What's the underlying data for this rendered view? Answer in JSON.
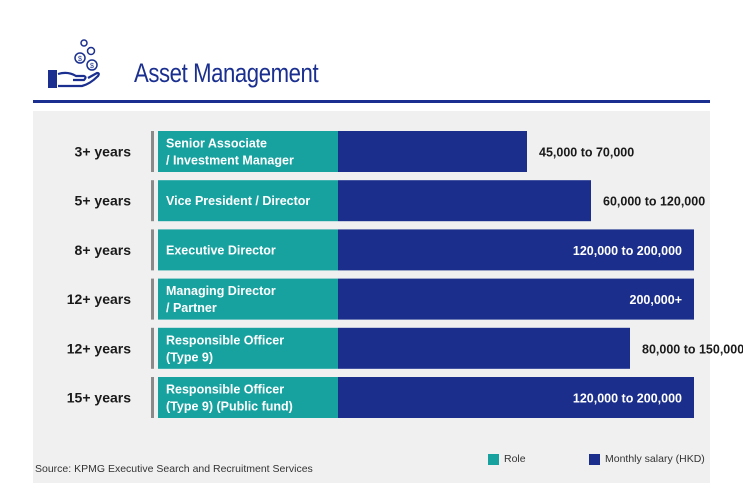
{
  "title": "Asset Management",
  "colors": {
    "accent": "#1a2f8f",
    "role": "#17a2a0",
    "salary": "#1b2e8c",
    "panel": "#f0f0f0"
  },
  "chart_data": {
    "type": "bar",
    "orientation": "horizontal",
    "value_unit": "HKD per month",
    "xlim": [
      0,
      200000
    ],
    "categories": [
      {
        "experience": "3+ years",
        "role": [
          "Senior Associate",
          "/ Investment Manager"
        ],
        "salary_min": 45000,
        "salary_max": 70000,
        "label": "45,000 to 70,000"
      },
      {
        "experience": "5+ years",
        "role": [
          "Vice President / Director"
        ],
        "salary_min": 60000,
        "salary_max": 120000,
        "label": "60,000 to 120,000"
      },
      {
        "experience": "8+ years",
        "role": [
          "Executive Director"
        ],
        "salary_min": 120000,
        "salary_max": 200000,
        "label": "120,000 to 200,000"
      },
      {
        "experience": "12+ years",
        "role": [
          "Managing Director",
          "/ Partner"
        ],
        "salary_min": 200000,
        "salary_max": 200000,
        "label": "200,000+"
      },
      {
        "experience": "12+ years",
        "role": [
          "Responsible Officer",
          "(Type 9)"
        ],
        "salary_min": 80000,
        "salary_max": 150000,
        "label": "80,000 to 150,000"
      },
      {
        "experience": "15+ years",
        "role": [
          "Responsible Officer",
          "(Type 9) (Public fund)"
        ],
        "salary_min": 120000,
        "salary_max": 200000,
        "label": "120,000 to 200,000"
      }
    ],
    "legend": {
      "position": "bottom-right",
      "items": [
        "Role",
        "Monthly salary (HKD)"
      ]
    }
  },
  "source": "Source: KPMG Executive Search and Recruitment Services"
}
